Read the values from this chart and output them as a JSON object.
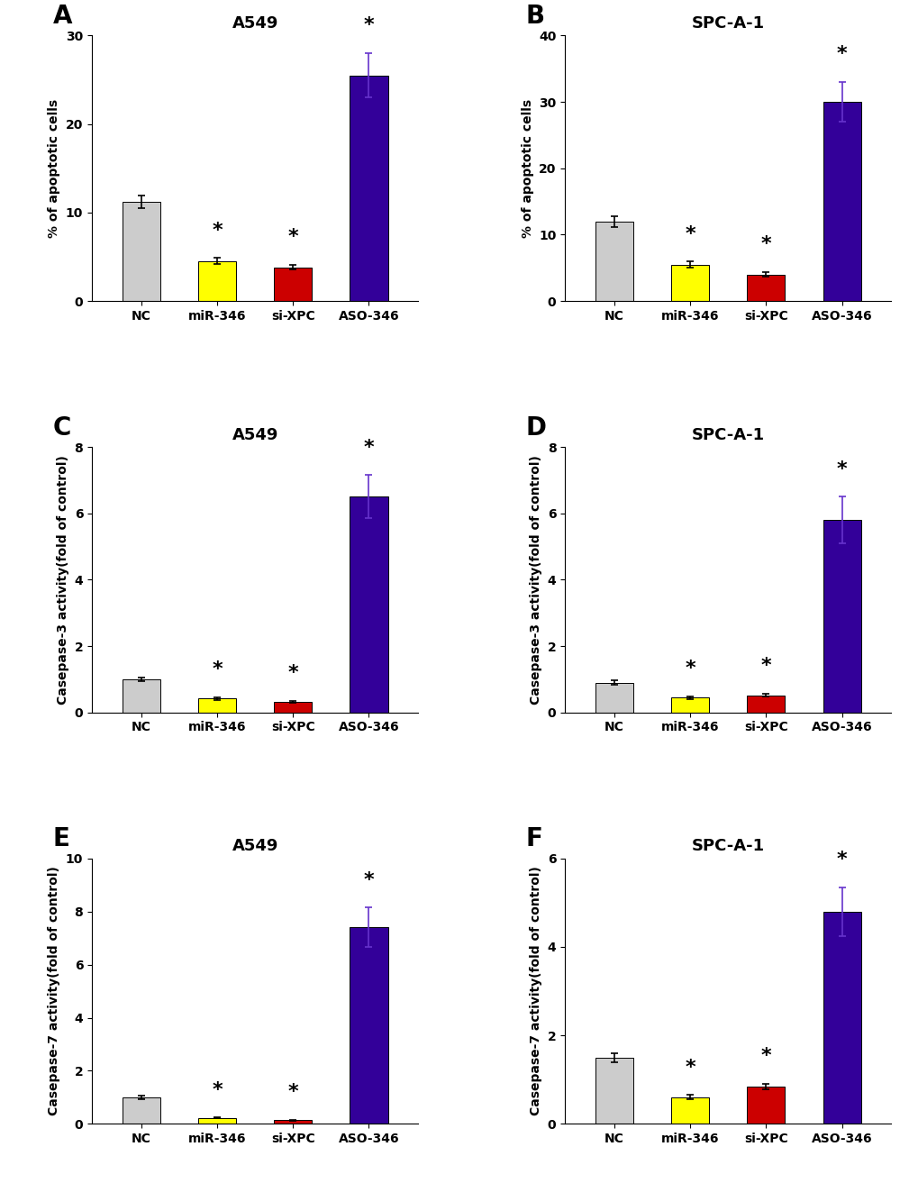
{
  "panels": [
    {
      "label": "A",
      "title": "A549",
      "ylabel": "% of apoptotic cells",
      "categories": [
        "NC",
        "miR-346",
        "si-XPC",
        "ASO-346"
      ],
      "values": [
        11.2,
        4.5,
        3.8,
        25.5
      ],
      "errors": [
        0.7,
        0.35,
        0.28,
        2.5
      ],
      "colors": [
        "#cccccc",
        "#ffff00",
        "#cc0000",
        "#330099"
      ],
      "ylim": [
        0,
        30
      ],
      "yticks": [
        0,
        10,
        20,
        30
      ],
      "star_indices": [
        1,
        2,
        3
      ]
    },
    {
      "label": "B",
      "title": "SPC-A-1",
      "ylabel": "% of apoptotic cells",
      "categories": [
        "NC",
        "miR-346",
        "si-XPC",
        "ASO-346"
      ],
      "values": [
        12.0,
        5.5,
        4.0,
        30.0
      ],
      "errors": [
        0.8,
        0.45,
        0.35,
        3.0
      ],
      "colors": [
        "#cccccc",
        "#ffff00",
        "#cc0000",
        "#330099"
      ],
      "ylim": [
        0,
        40
      ],
      "yticks": [
        0,
        10,
        20,
        30,
        40
      ],
      "star_indices": [
        1,
        2,
        3
      ]
    },
    {
      "label": "C",
      "title": "A549",
      "ylabel": "Casepase-3 activity(fold of control)",
      "categories": [
        "NC",
        "miR-346",
        "si-XPC",
        "ASO-346"
      ],
      "values": [
        1.0,
        0.42,
        0.32,
        6.5
      ],
      "errors": [
        0.05,
        0.04,
        0.03,
        0.65
      ],
      "colors": [
        "#cccccc",
        "#ffff00",
        "#cc0000",
        "#330099"
      ],
      "ylim": [
        0,
        8
      ],
      "yticks": [
        0,
        2,
        4,
        6,
        8
      ],
      "star_indices": [
        1,
        2,
        3
      ]
    },
    {
      "label": "D",
      "title": "SPC-A-1",
      "ylabel": "Casepase-3 activity(fold of control)",
      "categories": [
        "NC",
        "miR-346",
        "si-XPC",
        "ASO-346"
      ],
      "values": [
        0.9,
        0.45,
        0.52,
        5.8
      ],
      "errors": [
        0.06,
        0.04,
        0.04,
        0.7
      ],
      "colors": [
        "#cccccc",
        "#ffff00",
        "#cc0000",
        "#330099"
      ],
      "ylim": [
        0,
        8
      ],
      "yticks": [
        0,
        2,
        4,
        6,
        8
      ],
      "star_indices": [
        1,
        2,
        3
      ]
    },
    {
      "label": "E",
      "title": "A549",
      "ylabel": "Casepase-7 activity(fold of control)",
      "categories": [
        "NC",
        "miR-346",
        "si-XPC",
        "ASO-346"
      ],
      "values": [
        1.0,
        0.22,
        0.14,
        7.4
      ],
      "errors": [
        0.06,
        0.02,
        0.02,
        0.75
      ],
      "colors": [
        "#cccccc",
        "#ffff00",
        "#cc0000",
        "#330099"
      ],
      "ylim": [
        0,
        10
      ],
      "yticks": [
        0,
        2,
        4,
        6,
        8,
        10
      ],
      "star_indices": [
        1,
        2,
        3
      ]
    },
    {
      "label": "F",
      "title": "SPC-A-1",
      "ylabel": "Casepase-7 activity(fold of control)",
      "categories": [
        "NC",
        "miR-346",
        "si-XPC",
        "ASO-346"
      ],
      "values": [
        1.5,
        0.6,
        0.85,
        4.8
      ],
      "errors": [
        0.1,
        0.05,
        0.06,
        0.55
      ],
      "colors": [
        "#cccccc",
        "#ffff00",
        "#cc0000",
        "#330099"
      ],
      "ylim": [
        0,
        6
      ],
      "yticks": [
        0,
        2,
        4,
        6
      ],
      "star_indices": [
        1,
        2,
        3
      ]
    }
  ],
  "background_color": "#ffffff",
  "label_fontsize": 20,
  "title_fontsize": 13,
  "axis_fontsize": 10,
  "tick_fontsize": 10,
  "star_fontsize": 16,
  "bar_width": 0.5,
  "purple_error_color": "#6633cc"
}
